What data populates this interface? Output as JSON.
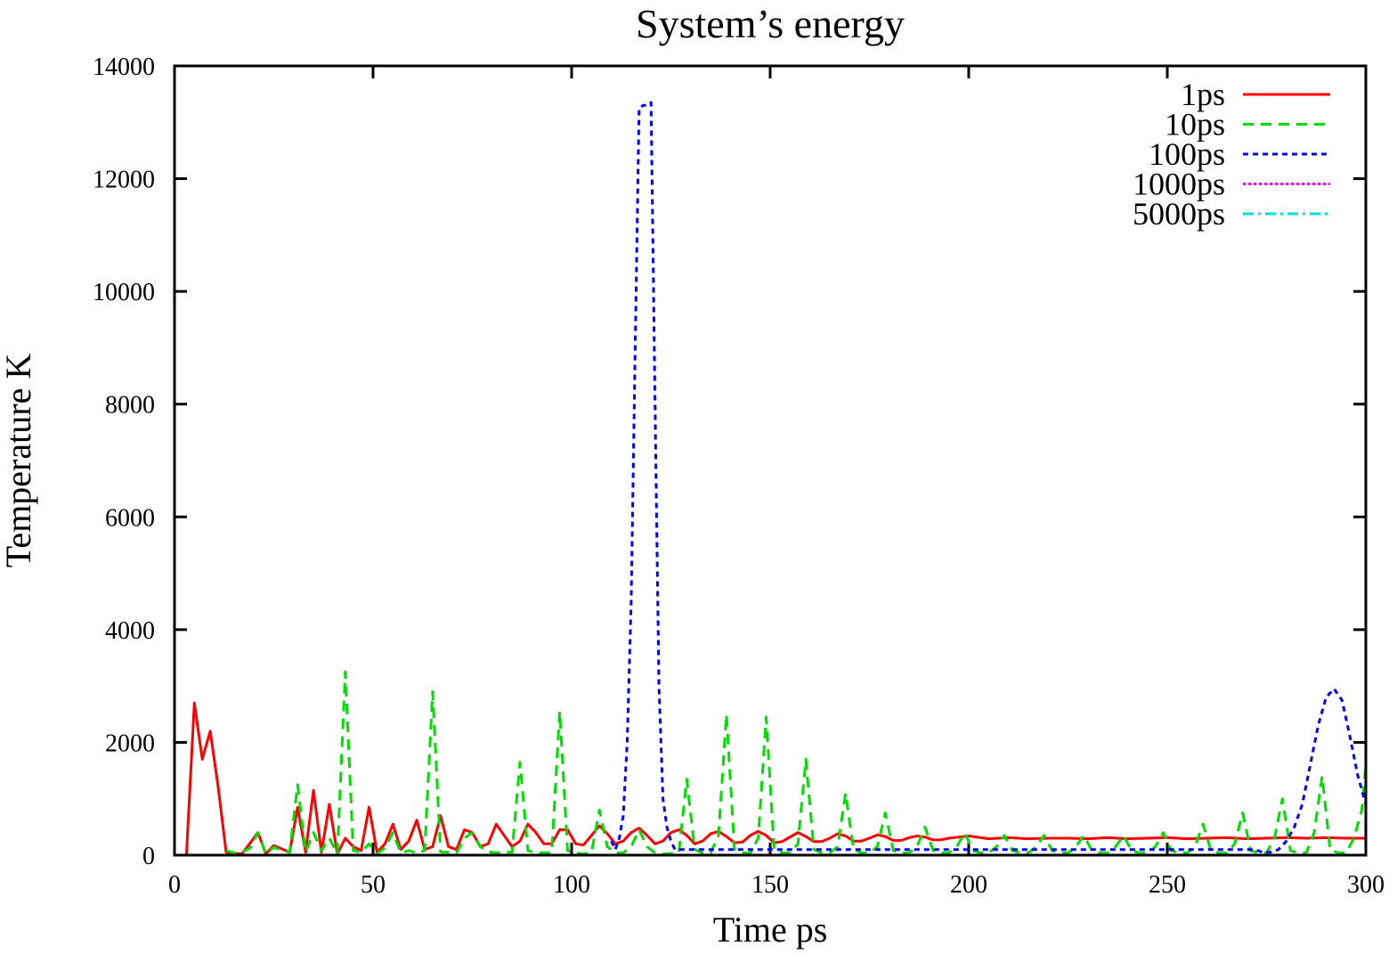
{
  "chart_data": {
    "type": "line",
    "title": "System’s energy",
    "xlabel": "Time ps",
    "ylabel": "Temperature K",
    "xlim": [
      0,
      300
    ],
    "ylim": [
      0,
      14000
    ],
    "xticks": [
      0,
      50,
      100,
      150,
      200,
      250,
      300
    ],
    "yticks": [
      0,
      2000,
      4000,
      6000,
      8000,
      10000,
      12000,
      14000
    ],
    "grid": false,
    "legend_position": "top-right",
    "series": [
      {
        "name": "1ps",
        "color": "#ff0000",
        "dash": "solid",
        "points": [
          [
            3,
            0
          ],
          [
            5,
            2700
          ],
          [
            7,
            1700
          ],
          [
            9,
            2200
          ],
          [
            11,
            1200
          ],
          [
            13,
            50
          ],
          [
            17,
            20
          ],
          [
            21,
            400
          ],
          [
            23,
            20
          ],
          [
            25,
            170
          ],
          [
            29,
            50
          ],
          [
            31,
            850
          ],
          [
            33,
            50
          ],
          [
            35,
            1150
          ],
          [
            37,
            50
          ],
          [
            39,
            900
          ],
          [
            41,
            20
          ],
          [
            43,
            300
          ],
          [
            45,
            150
          ],
          [
            47,
            80
          ],
          [
            49,
            850
          ],
          [
            51,
            50
          ],
          [
            53,
            200
          ],
          [
            55,
            550
          ],
          [
            57,
            100
          ],
          [
            59,
            250
          ],
          [
            61,
            620
          ],
          [
            63,
            100
          ],
          [
            65,
            150
          ],
          [
            67,
            700
          ],
          [
            69,
            150
          ],
          [
            71,
            100
          ],
          [
            73,
            450
          ],
          [
            75,
            400
          ],
          [
            77,
            150
          ],
          [
            79,
            200
          ],
          [
            81,
            550
          ],
          [
            83,
            350
          ],
          [
            85,
            150
          ],
          [
            87,
            250
          ],
          [
            89,
            550
          ],
          [
            91,
            400
          ],
          [
            93,
            200
          ],
          [
            95,
            200
          ],
          [
            97,
            450
          ],
          [
            99,
            450
          ],
          [
            101,
            200
          ],
          [
            103,
            180
          ],
          [
            105,
            350
          ],
          [
            107,
            520
          ],
          [
            109,
            380
          ],
          [
            111,
            200
          ],
          [
            113,
            250
          ],
          [
            115,
            400
          ],
          [
            117,
            480
          ],
          [
            119,
            350
          ],
          [
            121,
            200
          ],
          [
            123,
            250
          ],
          [
            125,
            400
          ],
          [
            127,
            450
          ],
          [
            129,
            350
          ],
          [
            131,
            200
          ],
          [
            133,
            250
          ],
          [
            135,
            380
          ],
          [
            137,
            420
          ],
          [
            139,
            330
          ],
          [
            141,
            220
          ],
          [
            143,
            230
          ],
          [
            145,
            350
          ],
          [
            147,
            420
          ],
          [
            149,
            350
          ],
          [
            151,
            220
          ],
          [
            153,
            240
          ],
          [
            155,
            320
          ],
          [
            157,
            400
          ],
          [
            159,
            330
          ],
          [
            161,
            240
          ],
          [
            163,
            240
          ],
          [
            165,
            300
          ],
          [
            167,
            380
          ],
          [
            169,
            340
          ],
          [
            171,
            250
          ],
          [
            173,
            250
          ],
          [
            175,
            300
          ],
          [
            177,
            360
          ],
          [
            179,
            330
          ],
          [
            181,
            260
          ],
          [
            183,
            260
          ],
          [
            185,
            310
          ],
          [
            187,
            340
          ],
          [
            189,
            320
          ],
          [
            191,
            270
          ],
          [
            193,
            270
          ],
          [
            195,
            300
          ],
          [
            200,
            340
          ],
          [
            205,
            290
          ],
          [
            210,
            310
          ],
          [
            215,
            290
          ],
          [
            220,
            300
          ],
          [
            225,
            300
          ],
          [
            230,
            290
          ],
          [
            235,
            310
          ],
          [
            240,
            290
          ],
          [
            245,
            300
          ],
          [
            250,
            310
          ],
          [
            255,
            290
          ],
          [
            260,
            300
          ],
          [
            265,
            310
          ],
          [
            270,
            290
          ],
          [
            275,
            300
          ],
          [
            280,
            310
          ],
          [
            285,
            300
          ],
          [
            290,
            310
          ],
          [
            295,
            300
          ],
          [
            300,
            300
          ]
        ]
      },
      {
        "name": "10ps",
        "color": "#00dd00",
        "dash": "12 8",
        "points": [
          [
            13,
            80
          ],
          [
            16,
            20
          ],
          [
            19,
            120
          ],
          [
            21,
            400
          ],
          [
            23,
            20
          ],
          [
            25,
            140
          ],
          [
            27,
            80
          ],
          [
            29,
            50
          ],
          [
            31,
            1250
          ],
          [
            33,
            50
          ],
          [
            35,
            400
          ],
          [
            37,
            80
          ],
          [
            39,
            300
          ],
          [
            41,
            20
          ],
          [
            43,
            3250
          ],
          [
            45,
            80
          ],
          [
            47,
            50
          ],
          [
            49,
            200
          ],
          [
            51,
            30
          ],
          [
            53,
            130
          ],
          [
            55,
            400
          ],
          [
            57,
            40
          ],
          [
            59,
            80
          ],
          [
            61,
            40
          ],
          [
            63,
            80
          ],
          [
            65,
            2900
          ],
          [
            67,
            60
          ],
          [
            69,
            50
          ],
          [
            71,
            40
          ],
          [
            73,
            300
          ],
          [
            75,
            400
          ],
          [
            77,
            150
          ],
          [
            79,
            60
          ],
          [
            81,
            40
          ],
          [
            83,
            50
          ],
          [
            85,
            50
          ],
          [
            87,
            1650
          ],
          [
            89,
            80
          ],
          [
            91,
            40
          ],
          [
            93,
            40
          ],
          [
            95,
            50
          ],
          [
            97,
            2550
          ],
          [
            99,
            80
          ],
          [
            101,
            40
          ],
          [
            103,
            20
          ],
          [
            105,
            50
          ],
          [
            107,
            800
          ],
          [
            109,
            150
          ],
          [
            111,
            40
          ],
          [
            113,
            40
          ],
          [
            115,
            150
          ],
          [
            117,
            450
          ],
          [
            119,
            150
          ],
          [
            121,
            40
          ],
          [
            123,
            20
          ],
          [
            125,
            30
          ],
          [
            127,
            40
          ],
          [
            129,
            1350
          ],
          [
            131,
            100
          ],
          [
            133,
            40
          ],
          [
            135,
            40
          ],
          [
            137,
            350
          ],
          [
            139,
            2500
          ],
          [
            141,
            100
          ],
          [
            143,
            40
          ],
          [
            145,
            40
          ],
          [
            147,
            300
          ],
          [
            149,
            2450
          ],
          [
            151,
            100
          ],
          [
            153,
            40
          ],
          [
            155,
            40
          ],
          [
            157,
            200
          ],
          [
            159,
            1700
          ],
          [
            161,
            100
          ],
          [
            163,
            40
          ],
          [
            165,
            40
          ],
          [
            167,
            150
          ],
          [
            169,
            1100
          ],
          [
            171,
            100
          ],
          [
            173,
            40
          ],
          [
            175,
            40
          ],
          [
            177,
            150
          ],
          [
            179,
            750
          ],
          [
            181,
            80
          ],
          [
            183,
            40
          ],
          [
            185,
            40
          ],
          [
            187,
            150
          ],
          [
            189,
            500
          ],
          [
            191,
            80
          ],
          [
            193,
            40
          ],
          [
            195,
            40
          ],
          [
            197,
            150
          ],
          [
            199,
            400
          ],
          [
            201,
            80
          ],
          [
            203,
            40
          ],
          [
            205,
            40
          ],
          [
            207,
            150
          ],
          [
            209,
            350
          ],
          [
            211,
            80
          ],
          [
            213,
            40
          ],
          [
            215,
            40
          ],
          [
            217,
            150
          ],
          [
            219,
            350
          ],
          [
            221,
            80
          ],
          [
            223,
            40
          ],
          [
            225,
            40
          ],
          [
            227,
            150
          ],
          [
            229,
            350
          ],
          [
            231,
            80
          ],
          [
            233,
            40
          ],
          [
            235,
            40
          ],
          [
            237,
            150
          ],
          [
            239,
            350
          ],
          [
            241,
            80
          ],
          [
            243,
            40
          ],
          [
            245,
            40
          ],
          [
            247,
            150
          ],
          [
            249,
            400
          ],
          [
            251,
            80
          ],
          [
            253,
            40
          ],
          [
            255,
            40
          ],
          [
            257,
            150
          ],
          [
            259,
            550
          ],
          [
            261,
            80
          ],
          [
            263,
            40
          ],
          [
            265,
            40
          ],
          [
            267,
            200
          ],
          [
            269,
            750
          ],
          [
            271,
            80
          ],
          [
            273,
            40
          ],
          [
            275,
            40
          ],
          [
            277,
            300
          ],
          [
            279,
            1000
          ],
          [
            281,
            80
          ],
          [
            283,
            40
          ],
          [
            285,
            40
          ],
          [
            287,
            400
          ],
          [
            289,
            1400
          ],
          [
            291,
            100
          ],
          [
            293,
            40
          ],
          [
            295,
            40
          ],
          [
            297,
            300
          ],
          [
            299,
            800
          ],
          [
            300,
            1600
          ]
        ]
      },
      {
        "name": "100ps",
        "color": "#0000ff",
        "dash": "6 5",
        "points": [
          [
            110,
            250
          ],
          [
            111,
            100
          ],
          [
            112,
            300
          ],
          [
            113,
            700
          ],
          [
            114,
            2000
          ],
          [
            115,
            4500
          ],
          [
            116,
            9000
          ],
          [
            117,
            13250
          ],
          [
            118,
            13300
          ],
          [
            119,
            13300
          ],
          [
            120,
            13350
          ],
          [
            121,
            8000
          ],
          [
            122,
            3000
          ],
          [
            123,
            1000
          ],
          [
            124,
            500
          ],
          [
            125,
            250
          ],
          [
            126,
            100
          ],
          [
            272,
            100
          ],
          [
            274,
            50
          ],
          [
            276,
            50
          ],
          [
            278,
            100
          ],
          [
            280,
            250
          ],
          [
            282,
            500
          ],
          [
            284,
            900
          ],
          [
            286,
            1600
          ],
          [
            288,
            2300
          ],
          [
            290,
            2800
          ],
          [
            292,
            2950
          ],
          [
            294,
            2750
          ],
          [
            296,
            2100
          ],
          [
            298,
            1400
          ],
          [
            300,
            900
          ]
        ]
      },
      {
        "name": "1000ps",
        "color": "#ff00ff",
        "dash": "3 3",
        "points": []
      },
      {
        "name": "5000ps",
        "color": "#00dddd",
        "dash": "12 5 3 5",
        "points": []
      }
    ]
  }
}
